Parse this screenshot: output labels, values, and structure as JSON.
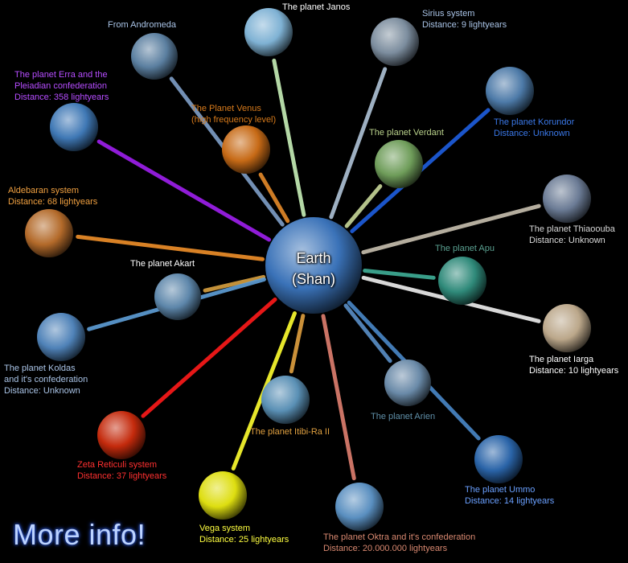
{
  "hub": {
    "name": "earth",
    "label": [
      "Earth",
      "(Shan)"
    ],
    "color": "#3a72b8"
  },
  "planets": [
    {
      "name": "janos",
      "label": [
        "The planet Janos"
      ],
      "label_color": "#ffffff",
      "color": "#7fb2d4",
      "beam": "#c8f0b8"
    },
    {
      "name": "andromeda",
      "label": [
        "From Andromeda"
      ],
      "label_color": "#a9c3e6",
      "color": "#5b7fa0",
      "beam": "#7f9fc8"
    },
    {
      "name": "sirius",
      "label": [
        "Sirius system",
        "Distance: 9 lightyears"
      ],
      "label_color": "#a9c3e6",
      "color": "#7c8d9e",
      "beam": "#b0c4d8"
    },
    {
      "name": "erra",
      "label": [
        "The planet Erra and the",
        "Pleiadian confederation",
        "Distance: 358 lightyears"
      ],
      "label_color": "#b64dff",
      "color": "#3f78b5",
      "beam": "#a020f0"
    },
    {
      "name": "venus",
      "label": [
        "The Planet Venus",
        "(high frequency level)"
      ],
      "label_color": "#d77a1b",
      "color": "#c76a16",
      "beam": "#e58a2a"
    },
    {
      "name": "korundor",
      "label": [
        "The planet Korundor",
        "Distance: Unknown"
      ],
      "label_color": "#3a78e8",
      "color": "#4d7aa8",
      "beam": "#1e5fe0"
    },
    {
      "name": "verdant",
      "label": [
        "The planet Verdant"
      ],
      "label_color": "#b8d08a",
      "color": "#6f9d5a",
      "beam": "#c8d89a"
    },
    {
      "name": "aldebaran",
      "label": [
        "Aldebaran system",
        "Distance: 68 lightyears"
      ],
      "label_color": "#f0a040",
      "color": "#b36a2a",
      "beam": "#f0902a"
    },
    {
      "name": "thiaoouba",
      "label": [
        "The planet Thiaoouba",
        "Distance: Unknown"
      ],
      "label_color": "#d8d8d8",
      "color": "#6b7b95",
      "beam": "#c8c0b0"
    },
    {
      "name": "akart",
      "label": [
        "The planet Akart"
      ],
      "label_color": "#ffffff",
      "color": "#5d86aa",
      "beam": "#d8a040"
    },
    {
      "name": "apu",
      "label": [
        "The planet Apu"
      ],
      "label_color": "#5aa090",
      "color": "#2f8a7a",
      "beam": "#40b098"
    },
    {
      "name": "iarga",
      "label": [
        "The planet Iarga",
        "Distance: 10 lightyears"
      ],
      "label_color": "#ffffff",
      "color": "#bba78a",
      "beam": "#f0f0f0"
    },
    {
      "name": "koldas",
      "label": [
        "The planet Koldas",
        "and it's confederation",
        "Distance: Unknown"
      ],
      "label_color": "#a9c3e6",
      "color": "#4f82b8",
      "beam": "#5f9fd8"
    },
    {
      "name": "arien",
      "label": [
        "The planet Arien"
      ],
      "label_color": "#5f8fa8",
      "color": "#6a8aa8",
      "beam": "#5a90c8"
    },
    {
      "name": "itibi-ra",
      "label": [
        "The planet Itibi-Ra II"
      ],
      "label_color": "#e0a040",
      "color": "#5a90b5",
      "beam": "#e0a040"
    },
    {
      "name": "zeta-reticuli",
      "label": [
        "Zeta Reticuli system",
        "Distance: 37 lightyears"
      ],
      "label_color": "#ff3030",
      "color": "#c42a0c",
      "beam": "#ff1a1a"
    },
    {
      "name": "ummo",
      "label": [
        "The planet Ummo",
        "Distance: 14 lightyears"
      ],
      "label_color": "#6aa0ff",
      "color": "#2a64a8",
      "beam": "#4a88c8"
    },
    {
      "name": "vega",
      "label": [
        "Vega system",
        "Distance: 25 lightyears"
      ],
      "label_color": "#ffff40",
      "color": "#dede10",
      "beam": "#ffff30"
    },
    {
      "name": "oktra",
      "label": [
        "The planet Oktra and it's confederation",
        "Distance: 20.000.000 lightyears"
      ],
      "label_color": "#d88870",
      "color": "#5a8fc0",
      "beam": "#e08070"
    }
  ],
  "footer": {
    "more_info": "More info!"
  }
}
